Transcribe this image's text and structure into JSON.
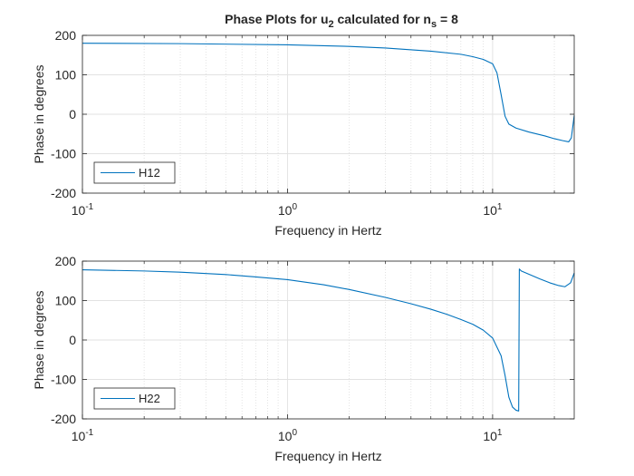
{
  "figure": {
    "title_main": "Phase Plots for u",
    "title_sub1": "2",
    "title_mid": " calculated for n",
    "title_sub2": "s",
    "title_end": " = 8"
  },
  "chart_data": [
    {
      "type": "line",
      "title": "Phase Plots for u2 calculated for ns = 8",
      "xlabel": "Frequency in Hertz",
      "ylabel": "Phase in degrees",
      "xscale": "log",
      "xlim": [
        0.1,
        25
      ],
      "ylim": [
        -200,
        200
      ],
      "xticks": [
        0.1,
        1,
        10
      ],
      "xtick_labels": [
        {
          "base": "10",
          "exp": "-1"
        },
        {
          "base": "10",
          "exp": "0"
        },
        {
          "base": "10",
          "exp": "1"
        }
      ],
      "yticks": [
        -200,
        -100,
        0,
        100,
        200
      ],
      "ytick_labels": [
        "-200",
        "-100",
        "0",
        "100",
        "200"
      ],
      "grid": true,
      "legend_position": "bottom-left",
      "color": "#0072BD",
      "series": [
        {
          "name": "H12",
          "x": [
            0.1,
            0.3,
            1,
            2,
            3,
            5,
            7,
            8,
            9,
            10,
            10.5,
            11,
            11.5,
            12,
            13,
            15,
            18,
            20,
            22,
            23.5,
            24.2,
            25
          ],
          "y": [
            180,
            179,
            176,
            172,
            168,
            160,
            152,
            146,
            139,
            128,
            105,
            50,
            -5,
            -25,
            -35,
            -45,
            -55,
            -62,
            -67,
            -70,
            -60,
            -3
          ]
        }
      ]
    },
    {
      "type": "line",
      "xlabel": "Frequency in Hertz",
      "ylabel": "Phase in degrees",
      "xscale": "log",
      "xlim": [
        0.1,
        25
      ],
      "ylim": [
        -200,
        200
      ],
      "xticks": [
        0.1,
        1,
        10
      ],
      "xtick_labels": [
        {
          "base": "10",
          "exp": "-1"
        },
        {
          "base": "10",
          "exp": "0"
        },
        {
          "base": "10",
          "exp": "1"
        }
      ],
      "yticks": [
        -200,
        -100,
        0,
        100,
        200
      ],
      "ytick_labels": [
        "-200",
        "-100",
        "0",
        "100",
        "200"
      ],
      "grid": true,
      "legend_position": "bottom-left",
      "color": "#0072BD",
      "series": [
        {
          "name": "H22",
          "x": [
            0.1,
            0.2,
            0.3,
            0.5,
            0.7,
            1,
            1.5,
            2,
            3,
            4,
            5,
            6,
            7,
            8,
            9,
            10,
            11,
            11.5,
            12,
            12.5,
            13,
            13.4,
            13.5,
            13.8,
            15,
            17,
            19,
            21,
            22.5,
            24,
            25
          ],
          "y": [
            178,
            175,
            172,
            166,
            160,
            153,
            140,
            128,
            108,
            92,
            78,
            65,
            52,
            40,
            25,
            5,
            -40,
            -90,
            -145,
            -170,
            -178,
            -180,
            180,
            175,
            167,
            155,
            145,
            138,
            135,
            145,
            170
          ]
        }
      ]
    }
  ]
}
